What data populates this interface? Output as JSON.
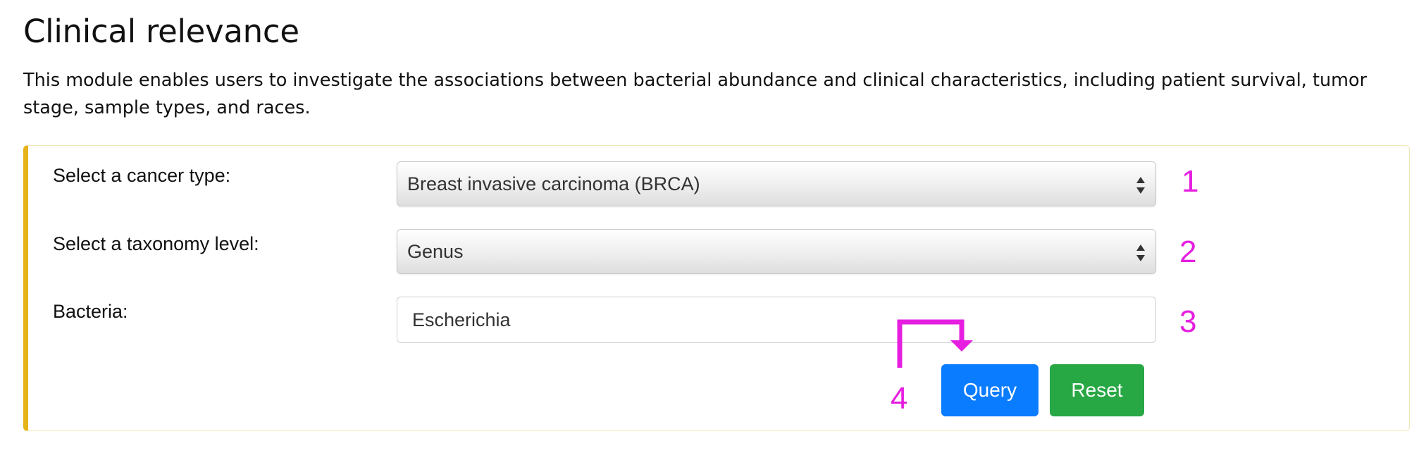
{
  "page": {
    "title": "Clinical relevance",
    "description": "This module enables users to investigate the associations between bacterial abundance and clinical characteristics, including patient survival, tumor stage, sample types, and races."
  },
  "form": {
    "cancer_type": {
      "label": "Select a cancer type:",
      "value": "Breast invasive carcinoma (BRCA)"
    },
    "taxonomy_level": {
      "label": "Select a taxonomy level:",
      "value": "Genus"
    },
    "bacteria": {
      "label": "Bacteria:",
      "value": "Escherichia"
    },
    "query_label": "Query",
    "reset_label": "Reset"
  },
  "annotations": {
    "step1": "1",
    "step2": "2",
    "step3": "3",
    "step4": "4"
  },
  "colors": {
    "panel_accent": "#e6b41a",
    "query_button": "#0a7cff",
    "reset_button": "#28a745",
    "annotation": "#e61ee0"
  },
  "icons": {
    "select_arrows": "up-down-arrows-icon",
    "annotation_arrow": "bent-arrow-icon"
  }
}
